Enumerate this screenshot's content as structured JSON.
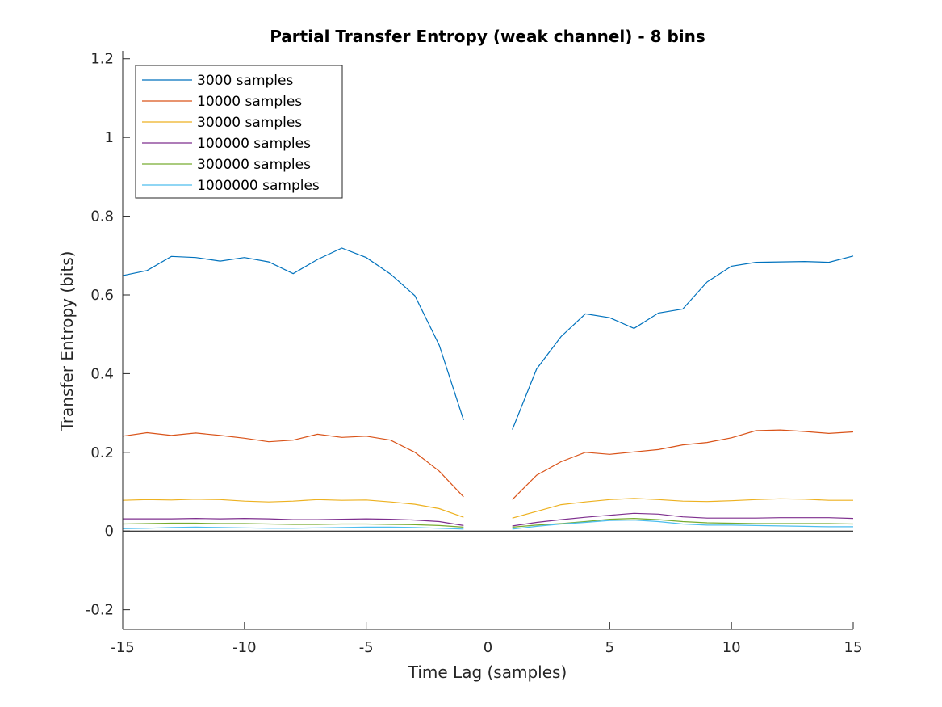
{
  "chart_data": {
    "type": "line",
    "title": "Partial Transfer Entropy (weak channel) - 8 bins",
    "xlabel": "Time Lag (samples)",
    "ylabel": "Transfer Entropy (bits)",
    "xlim": [
      -15,
      15
    ],
    "ylim": [
      -0.25,
      1.22
    ],
    "xticks": [
      -15,
      -10,
      -5,
      0,
      5,
      10,
      15
    ],
    "xtick_labels": [
      "-15",
      "-10",
      "-5",
      "0",
      "5",
      "10",
      "15"
    ],
    "yticks": [
      -0.2,
      0,
      0.2,
      0.4,
      0.6,
      0.8,
      1,
      1.2
    ],
    "ytick_labels": [
      "-0.2",
      "0",
      "0.2",
      "0.4",
      "0.6",
      "0.8",
      "1",
      "1.2"
    ],
    "grid": false,
    "legend_position": "top-left",
    "zero_line": true,
    "x": [
      -15,
      -14,
      -13,
      -12,
      -11,
      -10,
      -9,
      -8,
      -7,
      -6,
      -5,
      -4,
      -3,
      -2,
      -1,
      1,
      2,
      3,
      4,
      5,
      6,
      7,
      8,
      9,
      10,
      11,
      12,
      13,
      14,
      15
    ],
    "series": [
      {
        "name": "3000 samples",
        "color": "#0072BD",
        "values": [
          0.649,
          0.662,
          0.698,
          0.695,
          0.686,
          0.695,
          0.684,
          0.654,
          0.69,
          0.719,
          0.695,
          0.653,
          0.598,
          0.472,
          0.282,
          0.258,
          0.412,
          0.494,
          0.552,
          0.542,
          0.515,
          0.554,
          0.564,
          0.633,
          0.673,
          0.683,
          0.684,
          0.685,
          0.683,
          0.699
        ]
      },
      {
        "name": "10000 samples",
        "color": "#D95319",
        "values": [
          0.241,
          0.25,
          0.243,
          0.249,
          0.243,
          0.236,
          0.227,
          0.231,
          0.246,
          0.238,
          0.241,
          0.231,
          0.2,
          0.152,
          0.087,
          0.08,
          0.142,
          0.176,
          0.2,
          0.195,
          0.201,
          0.207,
          0.219,
          0.225,
          0.237,
          0.255,
          0.257,
          0.253,
          0.248,
          0.252
        ]
      },
      {
        "name": "30000 samples",
        "color": "#EDB120",
        "values": [
          0.078,
          0.08,
          0.079,
          0.081,
          0.08,
          0.076,
          0.074,
          0.076,
          0.08,
          0.078,
          0.079,
          0.074,
          0.068,
          0.057,
          0.035,
          0.033,
          0.05,
          0.067,
          0.074,
          0.08,
          0.083,
          0.08,
          0.076,
          0.075,
          0.077,
          0.08,
          0.082,
          0.081,
          0.078,
          0.078
        ]
      },
      {
        "name": "100000 samples",
        "color": "#7E2F8E",
        "values": [
          0.031,
          0.031,
          0.031,
          0.032,
          0.031,
          0.032,
          0.031,
          0.029,
          0.029,
          0.03,
          0.031,
          0.03,
          0.028,
          0.024,
          0.014,
          0.013,
          0.022,
          0.029,
          0.035,
          0.04,
          0.045,
          0.043,
          0.036,
          0.033,
          0.033,
          0.033,
          0.034,
          0.034,
          0.034,
          0.032
        ]
      },
      {
        "name": "300000 samples",
        "color": "#77AC30",
        "values": [
          0.018,
          0.019,
          0.02,
          0.02,
          0.019,
          0.019,
          0.018,
          0.017,
          0.017,
          0.018,
          0.018,
          0.017,
          0.016,
          0.014,
          0.01,
          0.01,
          0.015,
          0.019,
          0.024,
          0.03,
          0.032,
          0.029,
          0.024,
          0.021,
          0.02,
          0.019,
          0.019,
          0.019,
          0.019,
          0.018
        ]
      },
      {
        "name": "1000000 samples",
        "color": "#4DBEEE",
        "values": [
          0.006,
          0.007,
          0.009,
          0.01,
          0.009,
          0.008,
          0.007,
          0.007,
          0.008,
          0.009,
          0.01,
          0.01,
          0.009,
          0.007,
          0.005,
          0.005,
          0.012,
          0.018,
          0.022,
          0.027,
          0.028,
          0.024,
          0.018,
          0.015,
          0.015,
          0.014,
          0.013,
          0.012,
          0.011,
          0.011
        ]
      }
    ]
  }
}
